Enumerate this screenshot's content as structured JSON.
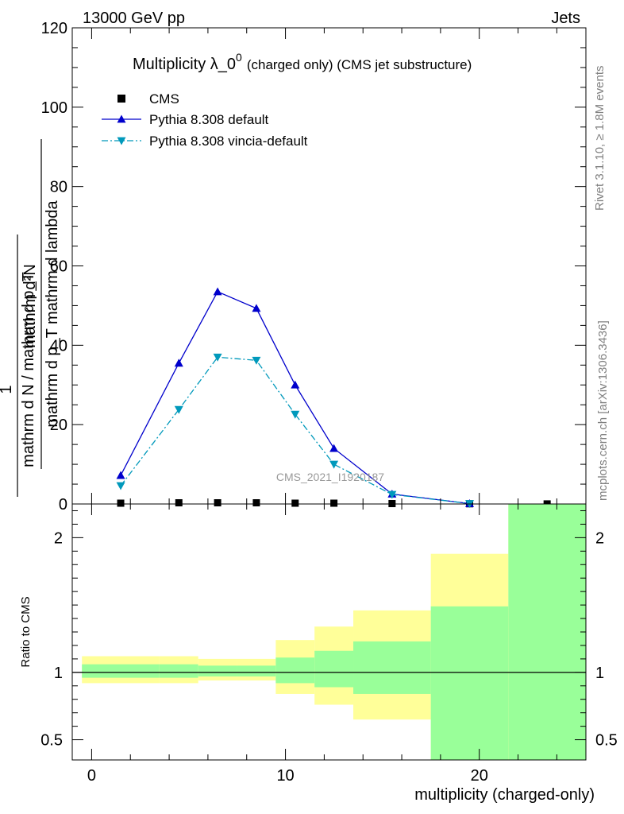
{
  "header": {
    "energy_label": "13000 GeV pp",
    "process_label": "Jets"
  },
  "side_text": {
    "rivet": "Rivet 3.1.10, ≥ 1.8M events",
    "mcplots": "mcplots.cern.ch [arXiv:1306.3436]"
  },
  "watermark": "CMS_2021_I1920187",
  "chart_data": [
    {
      "type": "line",
      "title": "Multiplicity λ_0",
      "title_sup": "0",
      "subtitle": "(charged only) (CMS jet substructure)",
      "ylabel_num": "mathrm d²N",
      "ylabel_den": "mathrm d p_T mathrm d lambda",
      "ylabel_prefix_num": "1",
      "ylabel_prefix_den": "mathrm d N / mathrm d p_T",
      "xlabel": "",
      "xlim": [
        -1,
        25.5
      ],
      "ylim": [
        0,
        120
      ],
      "yticks": [
        0,
        20,
        40,
        60,
        80,
        100,
        120
      ],
      "legend_placement": "top-left",
      "series": [
        {
          "name": "CMS",
          "color": "#000000",
          "marker": "square",
          "x": [
            1.5,
            4.5,
            6.5,
            8.5,
            10.5,
            12.5,
            15.5,
            19.5,
            23.5
          ],
          "y": [
            0.2,
            0.3,
            0.3,
            0.3,
            0.2,
            0.2,
            0.1,
            0.05,
            0.02
          ]
        },
        {
          "name": "Pythia 8.308 default",
          "color": "#0000cc",
          "marker": "triangle-up",
          "x": [
            1.5,
            4.5,
            6.5,
            8.5,
            10.5,
            12.5,
            15.5,
            19.5
          ],
          "y": [
            7.2,
            35.5,
            53.5,
            49.3,
            30.0,
            14.0,
            2.5,
            0.1
          ]
        },
        {
          "name": "Pythia 8.308 vincia-default",
          "color": "#0099bb",
          "marker": "triangle-down",
          "x": [
            1.5,
            4.5,
            6.5,
            8.5,
            10.5,
            12.5,
            15.5,
            19.5
          ],
          "y": [
            4.6,
            23.8,
            37.0,
            36.2,
            22.6,
            10.0,
            2.4,
            0.1
          ]
        }
      ]
    },
    {
      "type": "area",
      "title": "",
      "ylabel": "Ratio to CMS",
      "xlabel": "multiplicity (charged-only)",
      "xlim": [
        -1,
        25.5
      ],
      "ylim": [
        0.35,
        2.25
      ],
      "yticks": [
        0.5,
        1,
        2
      ],
      "xticks": [
        0,
        10,
        20
      ],
      "reference_line": 1,
      "bands": {
        "inner_color": "#99ff99",
        "outer_color": "#ffff99",
        "bins": [
          {
            "x0": -0.5,
            "x1": 3.5,
            "inner": [
              0.96,
              1.06
            ],
            "outer": [
              0.92,
              1.12
            ]
          },
          {
            "x0": 3.5,
            "x1": 5.5,
            "inner": [
              0.96,
              1.06
            ],
            "outer": [
              0.92,
              1.12
            ]
          },
          {
            "x0": 5.5,
            "x1": 7.5,
            "inner": [
              0.97,
              1.05
            ],
            "outer": [
              0.94,
              1.1
            ]
          },
          {
            "x0": 7.5,
            "x1": 9.5,
            "inner": [
              0.97,
              1.05
            ],
            "outer": [
              0.94,
              1.1
            ]
          },
          {
            "x0": 9.5,
            "x1": 11.5,
            "inner": [
              0.92,
              1.11
            ],
            "outer": [
              0.84,
              1.24
            ]
          },
          {
            "x0": 11.5,
            "x1": 13.5,
            "inner": [
              0.89,
              1.16
            ],
            "outer": [
              0.76,
              1.34
            ]
          },
          {
            "x0": 13.5,
            "x1": 17.5,
            "inner": [
              0.84,
              1.23
            ],
            "outer": [
              0.65,
              1.46
            ]
          },
          {
            "x0": 17.5,
            "x1": 21.5,
            "inner": [
              0.35,
              1.49
            ],
            "outer": [
              0.35,
              1.88
            ]
          },
          {
            "x0": 21.5,
            "x1": 25.5,
            "inner": [
              0.35,
              2.25
            ],
            "outer": [
              0.35,
              2.25
            ]
          }
        ]
      }
    }
  ]
}
